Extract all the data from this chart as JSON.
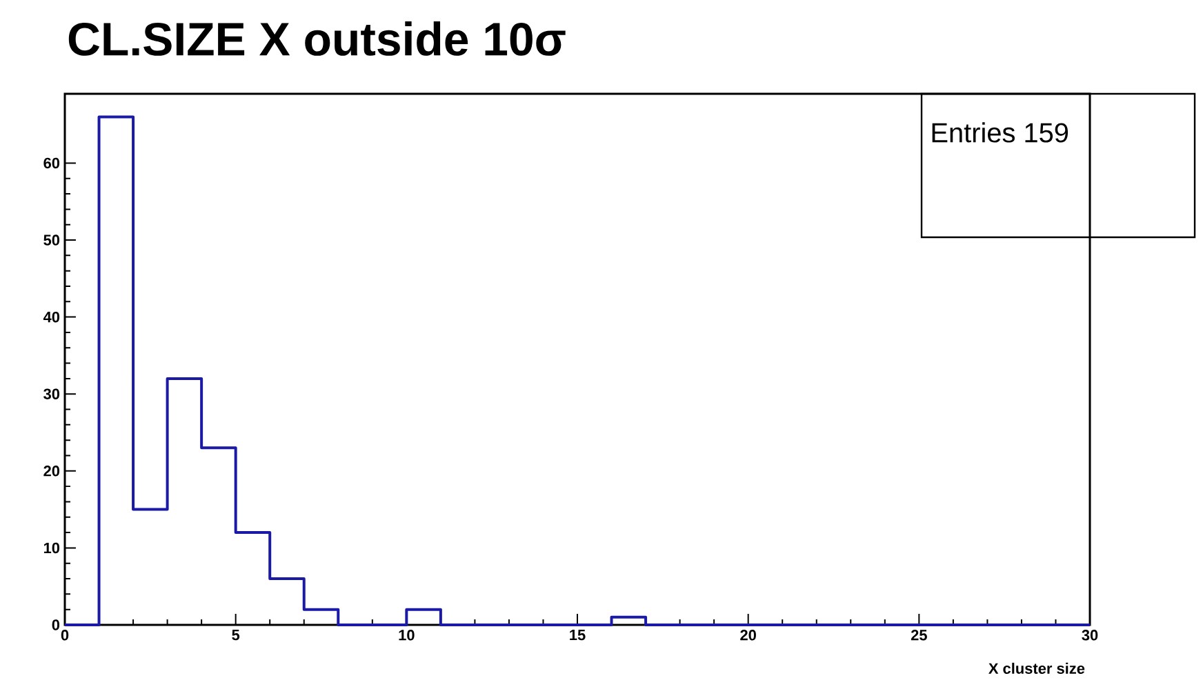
{
  "chart_data": {
    "type": "histogram",
    "title": "CL.SIZE X outside 10σ",
    "xlabel": "X cluster size",
    "bins": [
      0,
      1,
      2,
      3,
      4,
      5,
      6,
      7,
      8,
      9,
      10,
      11,
      12,
      13,
      14,
      15,
      16,
      17,
      18,
      19,
      20,
      21,
      22,
      23,
      24,
      25,
      26,
      27,
      28,
      29,
      30
    ],
    "values": [
      0,
      66,
      15,
      32,
      23,
      12,
      6,
      2,
      0,
      0,
      2,
      0,
      0,
      0,
      0,
      0,
      1,
      0,
      0,
      0,
      0,
      0,
      0,
      0,
      0,
      0,
      0,
      0,
      0,
      0
    ],
    "color": "#1a1aa6",
    "xlim": [
      0,
      30
    ],
    "xticks": [
      0,
      5,
      10,
      15,
      20,
      25,
      30
    ],
    "ylim": [
      0,
      69
    ],
    "yticks": [
      0,
      10,
      20,
      30,
      40,
      50,
      60
    ],
    "annotations": [
      "Entries 159"
    ]
  }
}
